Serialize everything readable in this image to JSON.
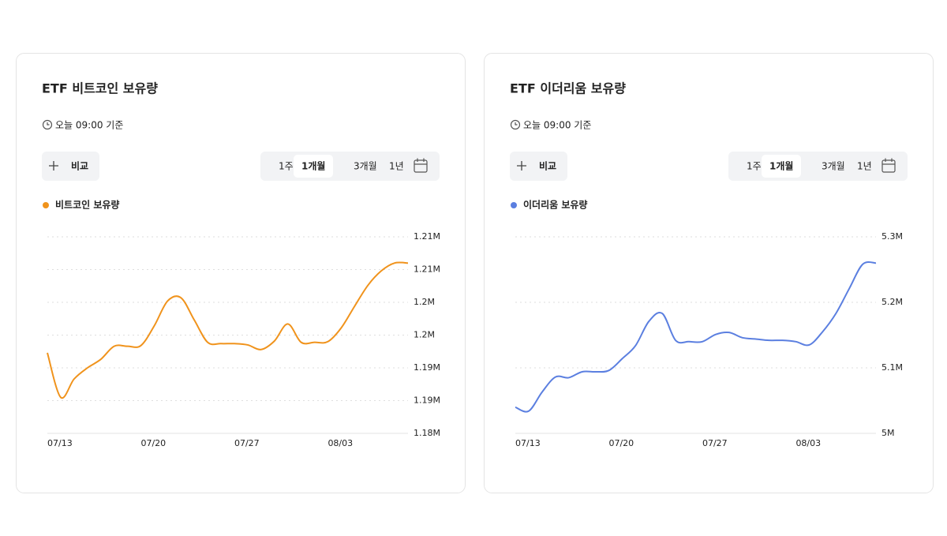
{
  "cards": [
    {
      "updated": "오늘 09:00 기준",
      "compare": "비교",
      "periods": [
        "1주",
        "1개월",
        "3개월",
        "1년"
      ],
      "active_period": 1
    },
    {
      "updated": "오늘 09:00 기준",
      "compare": "비교",
      "periods": [
        "1주",
        "1개월",
        "3개월",
        "1년"
      ],
      "active_period": 1
    }
  ],
  "chart_data": [
    {
      "type": "line",
      "title": "ETF 비트코인 보유량",
      "categories": [
        "07/13",
        null,
        null,
        null,
        null,
        null,
        null,
        "07/20",
        null,
        null,
        null,
        null,
        null,
        null,
        "07/27",
        null,
        null,
        null,
        null,
        null,
        null,
        "08/03",
        null,
        null,
        null,
        null,
        null,
        null
      ],
      "series": [
        {
          "name": "비트코인 보유량",
          "color": "#f0931c",
          "values": [
            1192300,
            1185500,
            1188300,
            1190000,
            1191300,
            1193300,
            1193300,
            1193400,
            1196400,
            1200200,
            1200700,
            1197300,
            1193900,
            1193700,
            1193700,
            1193500,
            1192800,
            1194100,
            1196700,
            1193900,
            1193900,
            1194000,
            1196100,
            1199400,
            1202600,
            1204800,
            1206000,
            1206000
          ]
        }
      ],
      "ylim": [
        1180000,
        1210000
      ],
      "yticks": [
        {
          "value": 1180000,
          "label": "1.18M"
        },
        {
          "value": 1185000,
          "label": "1.19M"
        },
        {
          "value": 1190000,
          "label": "1.19M"
        },
        {
          "value": 1195000,
          "label": "1.2M"
        },
        {
          "value": 1200000,
          "label": "1.2M"
        },
        {
          "value": 1205000,
          "label": "1.21M"
        },
        {
          "value": 1210000,
          "label": "1.21M"
        }
      ],
      "grid": true
    },
    {
      "type": "line",
      "title": "ETF 이더리움 보유량",
      "categories": [
        "07/13",
        null,
        null,
        null,
        null,
        null,
        null,
        "07/20",
        null,
        null,
        null,
        null,
        null,
        null,
        "07/27",
        null,
        null,
        null,
        null,
        null,
        null,
        "08/03",
        null,
        null,
        null,
        null,
        null,
        null
      ],
      "series": [
        {
          "name": "이더리움 보유량",
          "color": "#5b7fe0",
          "values": [
            5040000,
            5034000,
            5063000,
            5086000,
            5085000,
            5094000,
            5094000,
            5096000,
            5114000,
            5134000,
            5171000,
            5183000,
            5142000,
            5140000,
            5140000,
            5151000,
            5154000,
            5146000,
            5144000,
            5142000,
            5142000,
            5140000,
            5135000,
            5155000,
            5183000,
            5221000,
            5258000,
            5260000
          ]
        }
      ],
      "ylim": [
        5000000,
        5300000
      ],
      "yticks": [
        {
          "value": 5000000,
          "label": "5M"
        },
        {
          "value": 5100000,
          "label": "5.1M"
        },
        {
          "value": 5200000,
          "label": "5.2M"
        },
        {
          "value": 5300000,
          "label": "5.3M"
        }
      ],
      "grid": true
    }
  ]
}
